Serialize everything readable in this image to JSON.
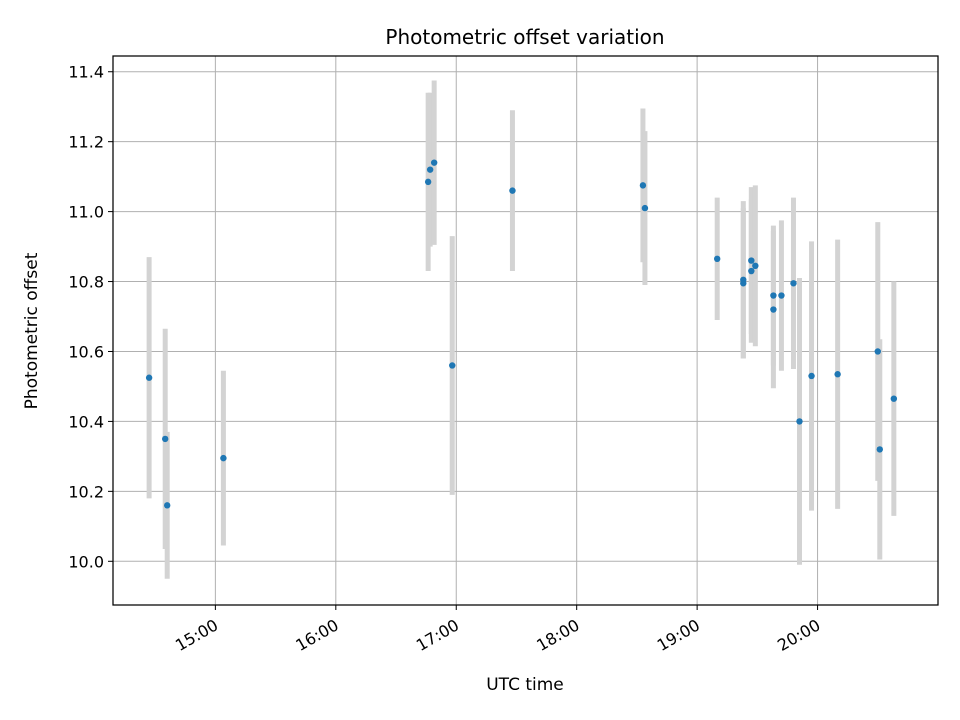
{
  "chart_data": {
    "type": "scatter",
    "title": "Photometric offset variation",
    "xlabel": "UTC time",
    "ylabel": "Photometric offset",
    "grid": true,
    "xlim": [
      "14:09",
      "21:00"
    ],
    "ylim": [
      9.875,
      11.445
    ],
    "xticks": [
      "15:00",
      "16:00",
      "17:00",
      "18:00",
      "19:00",
      "20:00"
    ],
    "yticks": [
      "10.0",
      "10.2",
      "10.4",
      "10.6",
      "10.8",
      "11.0",
      "11.2",
      "11.4"
    ],
    "colors": {
      "point": "#1f77b4",
      "errorbar": "#d3d3d3",
      "grid": "#b0b0b0"
    },
    "points": [
      {
        "x": "14:27",
        "y": 10.525,
        "err": 0.345
      },
      {
        "x": "14:35",
        "y": 10.35,
        "err": 0.315
      },
      {
        "x": "14:36",
        "y": 10.16,
        "err": 0.21
      },
      {
        "x": "15:04",
        "y": 10.295,
        "err": 0.25
      },
      {
        "x": "16:46",
        "y": 11.085,
        "err": 0.255
      },
      {
        "x": "16:47",
        "y": 11.12,
        "err": 0.22
      },
      {
        "x": "16:49",
        "y": 11.14,
        "err": 0.235
      },
      {
        "x": "16:58",
        "y": 10.56,
        "err": 0.37
      },
      {
        "x": "17:28",
        "y": 11.06,
        "err": 0.23
      },
      {
        "x": "18:33",
        "y": 11.075,
        "err": 0.22
      },
      {
        "x": "18:34",
        "y": 11.01,
        "err": 0.22
      },
      {
        "x": "19:10",
        "y": 10.865,
        "err": 0.175
      },
      {
        "x": "19:23",
        "y": 10.805,
        "err": 0.225
      },
      {
        "x": "19:23",
        "y": 10.795,
        "err": 0.215
      },
      {
        "x": "19:27",
        "y": 10.83,
        "err": 0.205
      },
      {
        "x": "19:27",
        "y": 10.86,
        "err": 0.21
      },
      {
        "x": "19:29",
        "y": 10.845,
        "err": 0.23
      },
      {
        "x": "19:38",
        "y": 10.76,
        "err": 0.2
      },
      {
        "x": "19:38",
        "y": 10.72,
        "err": 0.225
      },
      {
        "x": "19:42",
        "y": 10.76,
        "err": 0.215
      },
      {
        "x": "19:48",
        "y": 10.795,
        "err": 0.245
      },
      {
        "x": "19:51",
        "y": 10.4,
        "err": 0.41
      },
      {
        "x": "19:57",
        "y": 10.53,
        "err": 0.385
      },
      {
        "x": "20:10",
        "y": 10.535,
        "err": 0.385
      },
      {
        "x": "20:30",
        "y": 10.6,
        "err": 0.37
      },
      {
        "x": "20:31",
        "y": 10.32,
        "err": 0.315
      },
      {
        "x": "20:38",
        "y": 10.465,
        "err": 0.335
      }
    ]
  }
}
